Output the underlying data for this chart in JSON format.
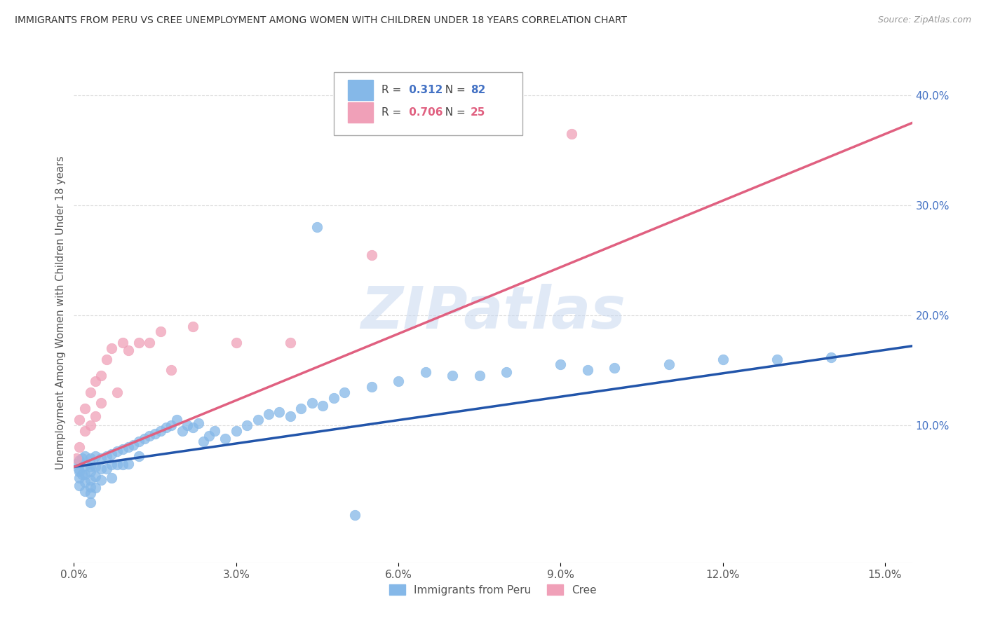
{
  "title": "IMMIGRANTS FROM PERU VS CREE UNEMPLOYMENT AMONG WOMEN WITH CHILDREN UNDER 18 YEARS CORRELATION CHART",
  "source": "Source: ZipAtlas.com",
  "ylabel": "Unemployment Among Women with Children Under 18 years",
  "xlim": [
    0.0,
    0.155
  ],
  "ylim": [
    -0.025,
    0.43
  ],
  "xticks": [
    0.0,
    0.03,
    0.06,
    0.09,
    0.12,
    0.15
  ],
  "xtick_labels": [
    "0.0%",
    "3.0%",
    "6.0%",
    "9.0%",
    "12.0%",
    "15.0%"
  ],
  "yticks_right": [
    0.1,
    0.2,
    0.3,
    0.4
  ],
  "ytick_right_labels": [
    "10.0%",
    "20.0%",
    "30.0%",
    "40.0%"
  ],
  "blue_R": 0.312,
  "blue_N": 82,
  "pink_R": 0.706,
  "pink_N": 25,
  "blue_color": "#85b8e8",
  "pink_color": "#f0a0b8",
  "blue_line_color": "#2255aa",
  "pink_line_color": "#e06080",
  "watermark": "ZIPatlas",
  "watermark_color": "#c8d8f0",
  "blue_line_x": [
    0.0,
    0.155
  ],
  "blue_line_y": [
    0.062,
    0.172
  ],
  "pink_line_x": [
    0.0,
    0.155
  ],
  "pink_line_y": [
    0.062,
    0.375
  ],
  "blue_scatter_x": [
    0.0005,
    0.0008,
    0.001,
    0.001,
    0.001,
    0.001,
    0.0015,
    0.0015,
    0.002,
    0.002,
    0.002,
    0.002,
    0.002,
    0.003,
    0.003,
    0.003,
    0.003,
    0.003,
    0.003,
    0.003,
    0.004,
    0.004,
    0.004,
    0.004,
    0.005,
    0.005,
    0.005,
    0.006,
    0.006,
    0.007,
    0.007,
    0.007,
    0.008,
    0.008,
    0.009,
    0.009,
    0.01,
    0.01,
    0.011,
    0.012,
    0.012,
    0.013,
    0.014,
    0.015,
    0.016,
    0.017,
    0.018,
    0.019,
    0.02,
    0.021,
    0.022,
    0.023,
    0.024,
    0.025,
    0.026,
    0.028,
    0.03,
    0.032,
    0.034,
    0.036,
    0.038,
    0.04,
    0.042,
    0.044,
    0.046,
    0.048,
    0.05,
    0.055,
    0.06,
    0.065,
    0.07,
    0.075,
    0.08,
    0.09,
    0.095,
    0.1,
    0.11,
    0.12,
    0.13,
    0.14,
    0.045,
    0.052
  ],
  "blue_scatter_y": [
    0.065,
    0.06,
    0.068,
    0.058,
    0.052,
    0.045,
    0.07,
    0.055,
    0.072,
    0.063,
    0.055,
    0.048,
    0.04,
    0.07,
    0.062,
    0.058,
    0.05,
    0.044,
    0.038,
    0.03,
    0.072,
    0.062,
    0.053,
    0.043,
    0.07,
    0.06,
    0.05,
    0.072,
    0.06,
    0.074,
    0.064,
    0.052,
    0.076,
    0.064,
    0.078,
    0.064,
    0.08,
    0.065,
    0.082,
    0.085,
    0.072,
    0.088,
    0.09,
    0.092,
    0.095,
    0.098,
    0.1,
    0.105,
    0.095,
    0.1,
    0.098,
    0.102,
    0.085,
    0.09,
    0.095,
    0.088,
    0.095,
    0.1,
    0.105,
    0.11,
    0.112,
    0.108,
    0.115,
    0.12,
    0.118,
    0.125,
    0.13,
    0.135,
    0.14,
    0.148,
    0.145,
    0.145,
    0.148,
    0.155,
    0.15,
    0.152,
    0.155,
    0.16,
    0.16,
    0.162,
    0.28,
    0.018
  ],
  "pink_scatter_x": [
    0.0005,
    0.001,
    0.001,
    0.002,
    0.002,
    0.003,
    0.003,
    0.004,
    0.004,
    0.005,
    0.005,
    0.006,
    0.007,
    0.008,
    0.009,
    0.01,
    0.012,
    0.014,
    0.016,
    0.018,
    0.022,
    0.03,
    0.04,
    0.055,
    0.092
  ],
  "pink_scatter_y": [
    0.07,
    0.08,
    0.105,
    0.095,
    0.115,
    0.1,
    0.13,
    0.14,
    0.108,
    0.12,
    0.145,
    0.16,
    0.17,
    0.13,
    0.175,
    0.168,
    0.175,
    0.175,
    0.185,
    0.15,
    0.19,
    0.175,
    0.175,
    0.255,
    0.365
  ]
}
